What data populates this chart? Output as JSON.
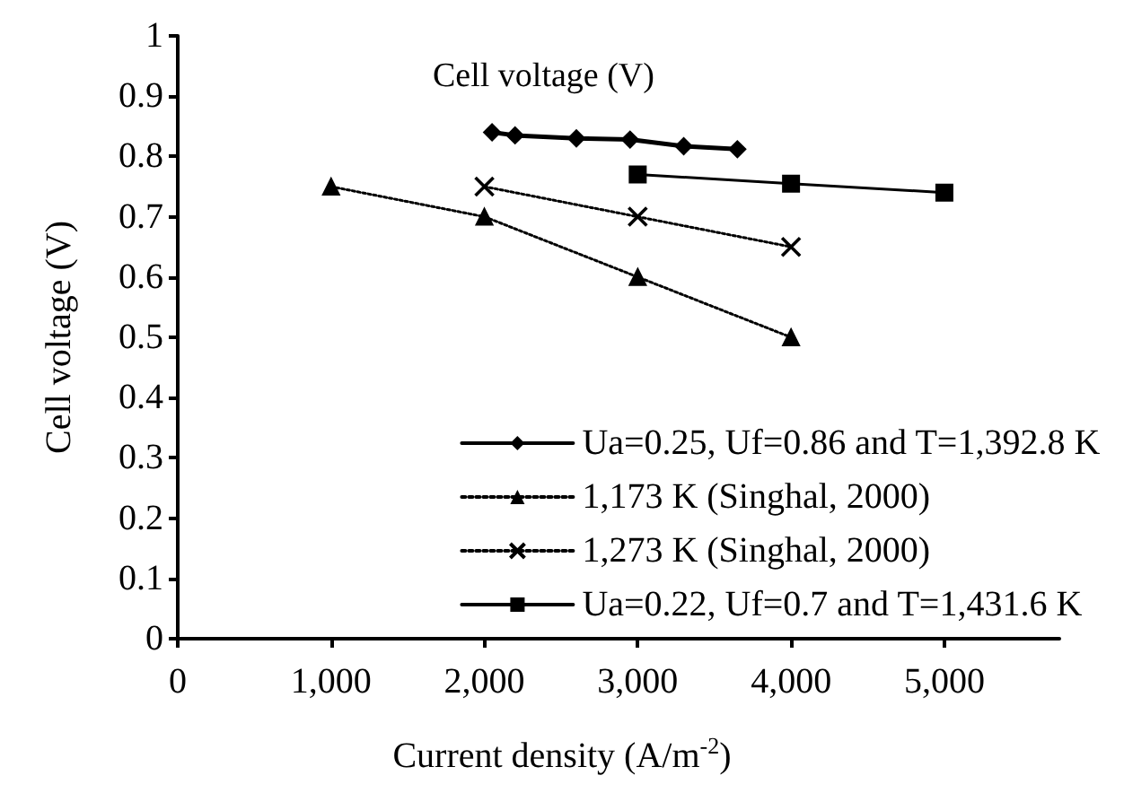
{
  "chart_data": {
    "type": "line",
    "title": "Cell voltage (V)",
    "xlabel": "Current density (A/m$^{-2}$)",
    "ylabel": "Cell voltage (V)",
    "xlim": [
      0,
      5750
    ],
    "xticks": [
      0,
      {
        "value": 1000,
        "label": "1,000"
      },
      {
        "value": 2000,
        "label": "2,000"
      },
      {
        "value": 3000,
        "label": "3,000"
      },
      {
        "value": 4000,
        "label": "4,000"
      },
      {
        "value": 5000,
        "label": "5,000"
      }
    ],
    "ylim": [
      0,
      1
    ],
    "yticks": [
      0,
      0.1,
      0.2,
      0.3,
      0.4,
      0.5,
      0.6,
      0.7,
      0.8,
      0.9,
      1
    ],
    "grid": false,
    "legend": "bottom right",
    "series": [
      {
        "name": "Ua=0.25, Uf=0.86 and T=1,392.8 K",
        "color": "#000000",
        "marker": "diamond",
        "line_style": "solid",
        "x": [
          2050,
          2200,
          2600,
          2950,
          3300,
          3650
        ],
        "values": [
          0.84,
          0.835,
          0.83,
          0.828,
          0.817,
          0.812
        ]
      },
      {
        "name": "1,173 K (Singhal, 2000)",
        "color": "#000000",
        "marker": "triangle",
        "line_style": "dotted",
        "x": [
          1000,
          2000,
          3000,
          4000
        ],
        "values": [
          0.75,
          0.7,
          0.6,
          0.5
        ]
      },
      {
        "name": "1,273 K (Singhal, 2000)",
        "color": "#000000",
        "marker": "cross",
        "line_style": "dotted",
        "x": [
          2000,
          3000,
          4000
        ],
        "values": [
          0.75,
          0.7,
          0.65
        ]
      },
      {
        "name": "Ua=0.22, Uf=0.7 and T=1,431.6 K",
        "color": "#000000",
        "marker": "square",
        "line_style": "solid",
        "x": [
          3000,
          4000,
          5000
        ],
        "values": [
          0.77,
          0.755,
          0.74
        ]
      }
    ]
  }
}
